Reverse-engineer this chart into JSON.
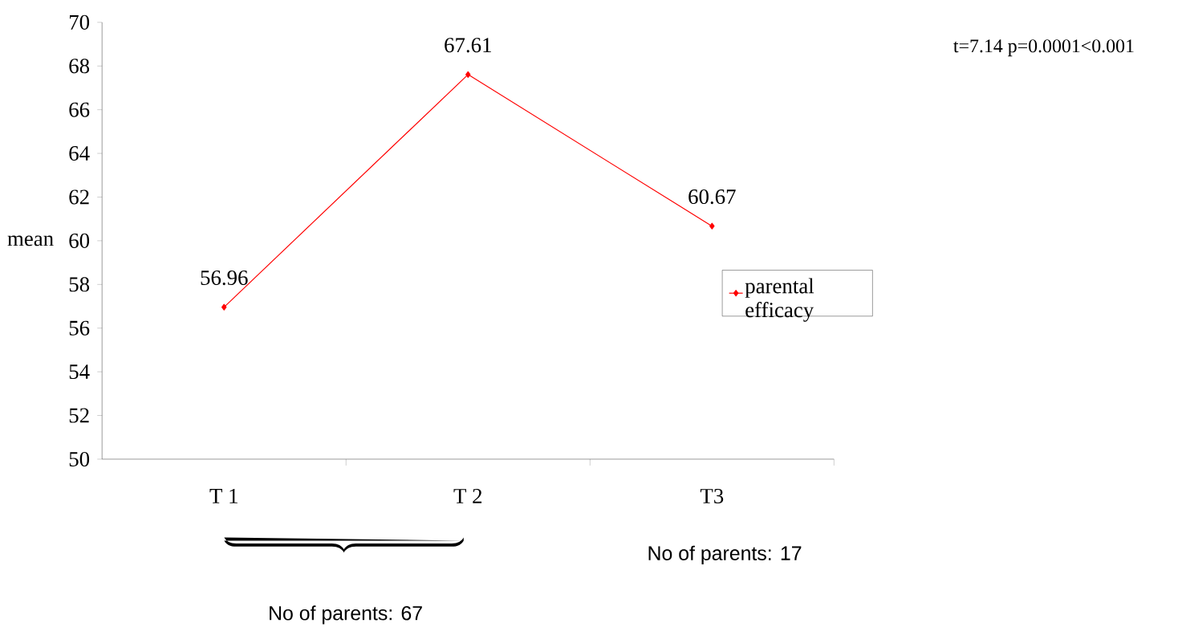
{
  "chart_data": {
    "type": "line",
    "ylabel": "mean",
    "categories": [
      "T 1",
      "T 2",
      "T3"
    ],
    "series": [
      {
        "name": "parental efficacy",
        "color": "#ff0000",
        "values": [
          56.96,
          67.61,
          60.67
        ]
      }
    ],
    "ylim": [
      50,
      70
    ],
    "yticks": [
      50,
      52,
      54,
      56,
      58,
      60,
      62,
      64,
      66,
      68,
      70
    ],
    "data_labels": true,
    "marker": "diamond",
    "legend": "right",
    "grid": false,
    "annotations": [
      "t=7.14 p=0.0001<0.001",
      "No of parents: 67",
      "No of parents: 17"
    ]
  }
}
